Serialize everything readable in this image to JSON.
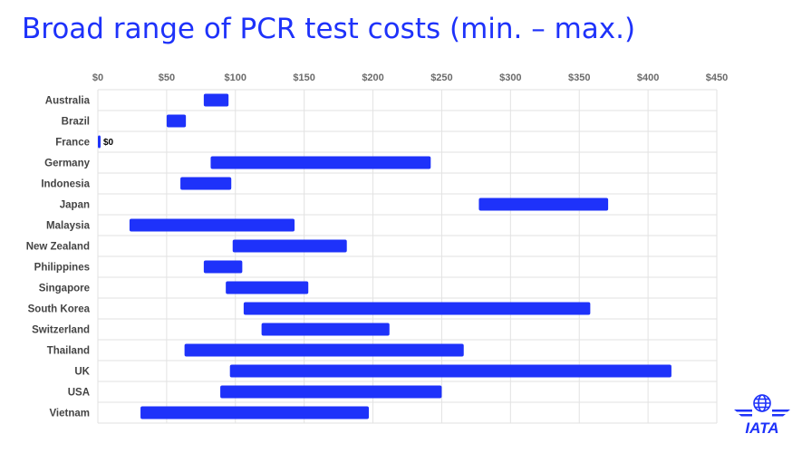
{
  "title": "Broad range of PCR test costs (min. – max.)",
  "colors": {
    "accent": "#1e32fa",
    "grid": "#e2e2e2"
  },
  "logo": {
    "text": "IATA",
    "icon": "globe-wings-icon"
  },
  "chart_data": {
    "type": "bar",
    "orientation": "horizontal-floating",
    "title": "Broad range of PCR test costs (min. – max.)",
    "xlim": [
      0,
      450
    ],
    "xticks": [
      0,
      50,
      100,
      150,
      200,
      250,
      300,
      350,
      400,
      450
    ],
    "xtick_labels": [
      "$0",
      "$50",
      "$100",
      "$150",
      "$200",
      "$250",
      "$300",
      "$350",
      "$400",
      "$450"
    ],
    "grid": true,
    "categories": [
      "Australia",
      "Brazil",
      "France",
      "Germany",
      "Indonesia",
      "Japan",
      "Malaysia",
      "New Zealand",
      "Philippines",
      "Singapore",
      "South Korea",
      "Switzerland",
      "Thailand",
      "UK",
      "USA",
      "Vietnam"
    ],
    "min": [
      77,
      50,
      0,
      82,
      60,
      277,
      23,
      98,
      77,
      93,
      106,
      119,
      63,
      96,
      89,
      31
    ],
    "max": [
      95,
      64,
      0,
      242,
      97,
      371,
      143,
      181,
      105,
      153,
      358,
      212,
      266,
      417,
      250,
      197
    ],
    "data_labels": [
      {
        "category": "France",
        "text": "$0"
      }
    ]
  }
}
